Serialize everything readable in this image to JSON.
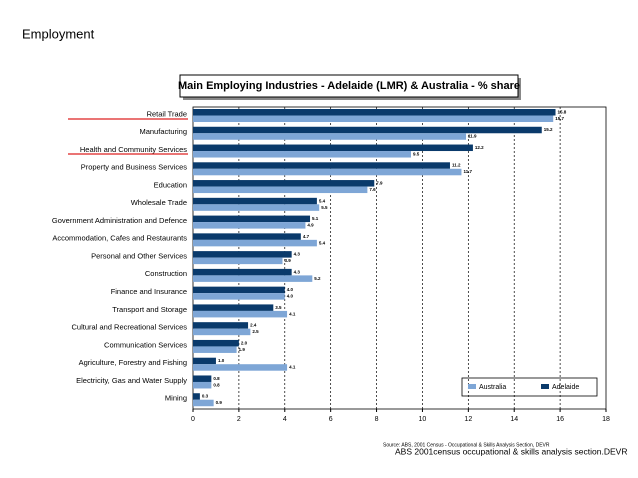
{
  "page_title": "Employment",
  "chart_data": {
    "type": "hbar",
    "title": "Main Employing Industries - Adelaide (LMR) & Australia - % share",
    "categories": [
      "Retail Trade",
      "Manufacturing",
      "Health and Community Services",
      "Property and Business Services",
      "Education",
      "Wholesale Trade",
      "Government Administration and Defence",
      "Accommodation, Cafes and Restaurants",
      "Personal and Other Services",
      "Construction",
      "Finance and Insurance",
      "Transport and Storage",
      "Cultural and Recreational Services",
      "Communication Services",
      "Agriculture, Forestry and Fishing",
      "Electricity, Gas and Water Supply",
      "Mining"
    ],
    "series": [
      {
        "name": "Adelaide",
        "color": "#0a3a6b",
        "values": [
          15.8,
          15.2,
          12.2,
          11.2,
          7.9,
          5.4,
          5.1,
          4.7,
          4.3,
          4.3,
          4.0,
          3.5,
          2.4,
          2.0,
          1.0,
          0.8,
          0.3
        ],
        "value_labels": [
          "15.8",
          "15.2",
          "12.2",
          "11.2",
          "7.9",
          "5.4",
          "5.1",
          "4.7",
          "4.3",
          "4.3",
          "4.0",
          "3.5",
          "2.4",
          "2.0",
          "1.0",
          "0.8",
          "0.3"
        ]
      },
      {
        "name": "Australia",
        "color": "#7ea6d6",
        "values": [
          15.7,
          11.9,
          9.5,
          11.7,
          7.6,
          5.5,
          4.9,
          5.4,
          3.9,
          5.2,
          4.0,
          4.1,
          2.5,
          1.9,
          4.1,
          0.8,
          0.9
        ],
        "value_labels": [
          "15.7",
          "11.9",
          "9.5",
          "11.7",
          "7.6",
          "5.5",
          "4.9",
          "5.4",
          "3.9",
          "5.2",
          "4.0",
          "4.1",
          "2.5",
          "1.9",
          "4.1",
          "0.8",
          "0.9"
        ]
      }
    ],
    "xlim": [
      0,
      18
    ],
    "xticks": [
      0,
      2,
      4,
      6,
      8,
      10,
      12,
      14,
      16,
      18
    ],
    "grid": true,
    "source": "Source: ABS, 2001 Census - Occupational & Skills Analysis Section, DEVR",
    "footnote": "ABS 2001census occupational & skills analysis section.DEVR"
  }
}
